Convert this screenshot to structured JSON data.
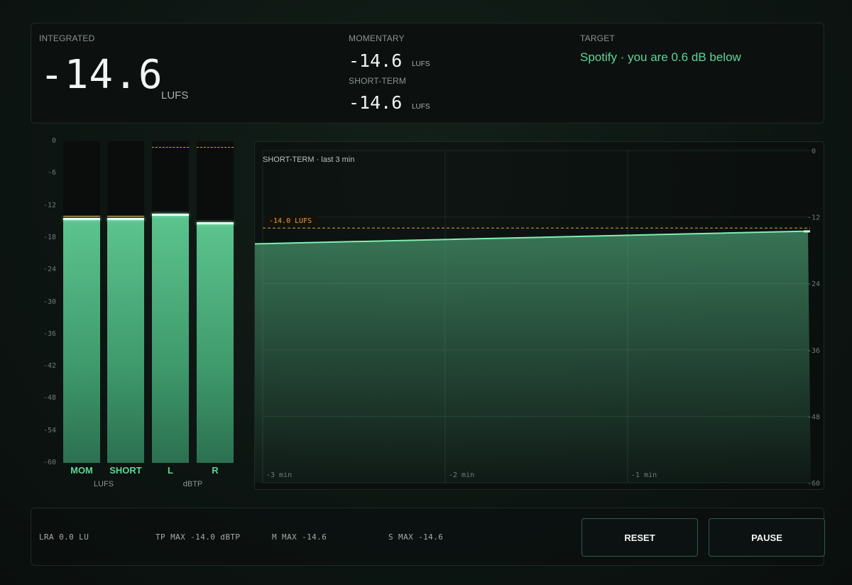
{
  "readouts": {
    "integrated": {
      "label": "INTEGRATED",
      "value": "-14.6",
      "unit": "LUFS"
    },
    "momentary": {
      "label": "MOMENTARY",
      "value": "-14.6",
      "unit": "LUFS"
    },
    "short_term": {
      "label": "SHORT-TERM",
      "value": "-14.6",
      "unit": "LUFS"
    },
    "target": {
      "label": "TARGET",
      "status": "Spotify · you are 0.6 dB below"
    }
  },
  "meters": {
    "scale_min": -60,
    "scale_max": 0,
    "scale_ticks": [
      "0",
      "-6",
      "-12",
      "-18",
      "-24",
      "-30",
      "-36",
      "-42",
      "-48",
      "-54",
      "-60"
    ],
    "bars": [
      {
        "label": "MOM",
        "level_db": -14.6,
        "hold_db": -14.0
      },
      {
        "label": "SHORT",
        "level_db": -14.6,
        "hold_db": -14.0
      },
      {
        "label": "L",
        "level_db": -13.8
      },
      {
        "label": "R",
        "level_db": -15.3
      }
    ],
    "true_peak_target_db": -1.0,
    "group_labels": [
      "LUFS",
      "dBTP"
    ]
  },
  "history": {
    "title": "SHORT-TERM · last 3 min",
    "target_label": "-14.0 LUFS",
    "target_db": -14.0,
    "x_labels": [
      "-3 min",
      "-2 min",
      "-1 min"
    ],
    "y_ticks": [
      "0",
      "-12",
      "-24",
      "-36",
      "-48",
      "-60"
    ],
    "y_range": [
      -60,
      0
    ],
    "series": [
      [
        -60,
        -60
      ],
      [
        -0.05,
        -14.6
      ],
      [
        0,
        -14.6
      ]
    ]
  },
  "stats": {
    "lra": "LRA 0.0 LU",
    "tp_max": "TP MAX -14.0 dBTP",
    "m_max": "M MAX -14.6",
    "s_max": "S MAX -14.6"
  },
  "buttons": {
    "reset": "RESET",
    "pause": "PAUSE"
  },
  "colors": {
    "accent": "#5fd497",
    "target": "#e0a23c",
    "meter_top": "#5cc48e",
    "meter_bottom": "#2b7050"
  }
}
